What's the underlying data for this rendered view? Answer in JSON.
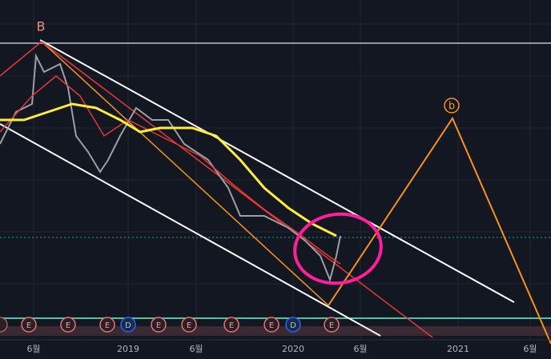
{
  "x_axis": {
    "labels": [
      "6월",
      "2019",
      "6월",
      "2020",
      "6월",
      "2021",
      "6월"
    ]
  },
  "wave_labels": {
    "major": "B",
    "minor": "b"
  },
  "events": [
    "E",
    "E",
    "E",
    "D",
    "E",
    "E",
    "E",
    "E",
    "D",
    "E"
  ]
}
